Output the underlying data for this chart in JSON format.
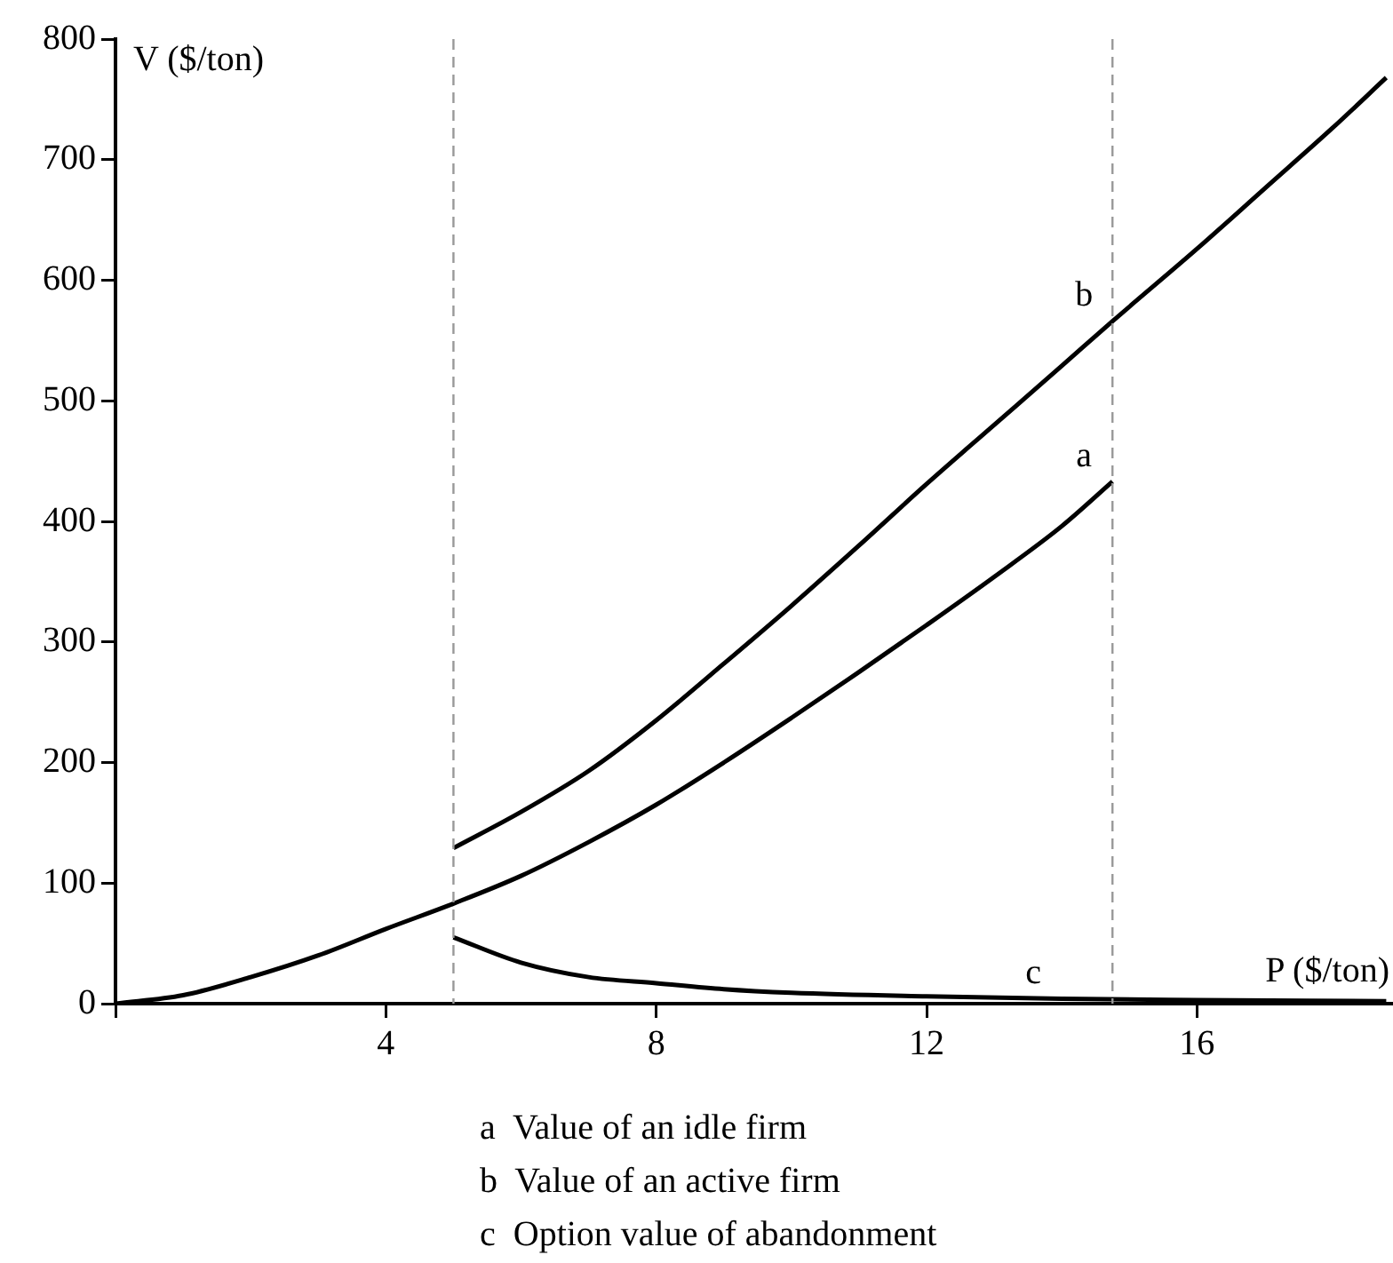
{
  "chart_data": {
    "type": "line",
    "xlabel": "P ($/ton)",
    "ylabel": "V ($/ton)",
    "xlim": [
      0,
      18.9
    ],
    "xticks": [
      {
        "value": 0,
        "label": null
      },
      4,
      8,
      12,
      16
    ],
    "ylim": [
      0,
      800
    ],
    "yticks": [
      0,
      100,
      200,
      300,
      400,
      500,
      600,
      700,
      800
    ],
    "grid": false,
    "legend": false,
    "marker": "none",
    "line_style": "solid",
    "series": [
      {
        "name": "a",
        "color": "#000000",
        "x": [
          0,
          1,
          2,
          3,
          4,
          5,
          6,
          7,
          8,
          9,
          10,
          11,
          12,
          13,
          14,
          14.75
        ],
        "values": [
          0,
          7,
          22,
          40,
          62,
          83,
          106,
          134,
          165,
          200,
          237,
          275,
          314,
          354,
          396,
          433
        ]
      },
      {
        "name": "b",
        "color": "#000000",
        "x": [
          5,
          6,
          7,
          8,
          9,
          10,
          11,
          12,
          13,
          14,
          14.75,
          16,
          17,
          18,
          18.8
        ],
        "values": [
          129,
          159,
          193,
          235,
          282,
          330,
          380,
          431,
          480,
          529,
          566,
          626,
          676,
          726,
          768
        ]
      },
      {
        "name": "c",
        "color": "#000000",
        "x": [
          5,
          6,
          7,
          8,
          9,
          10,
          12,
          14,
          16,
          18.8
        ],
        "values": [
          55,
          34,
          22,
          17,
          12,
          9,
          6,
          4,
          3,
          2
        ]
      }
    ],
    "ref_lines": [
      {
        "axis": "x",
        "value": 5,
        "color": "#999999",
        "line_style": "dashed"
      },
      {
        "axis": "x",
        "value": 14.75,
        "color": "#999999",
        "line_style": "dashed"
      }
    ],
    "annotations": [
      "a  Value of an idle firm",
      "b  Value of an active firm",
      "c  Option value of abandonment"
    ]
  }
}
